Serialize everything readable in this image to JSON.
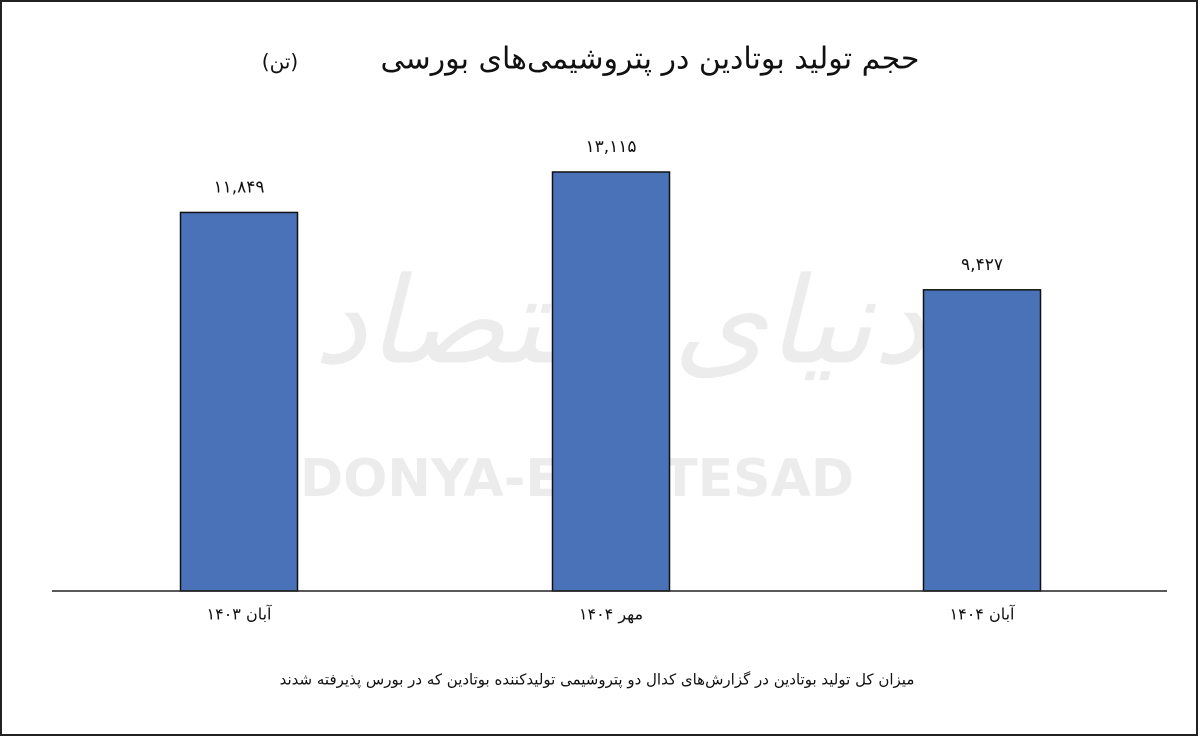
{
  "chart_data": {
    "type": "bar",
    "title": "حجم تولید بوتادین در پتروشیمی‌های بورسی",
    "title_unit": "(تن)",
    "categories": [
      "آبان ۱۴۰۳",
      "مهر ۱۴۰۴",
      "آبان ۱۴۰۴"
    ],
    "values": [
      11849,
      13115,
      9427
    ],
    "value_labels": [
      "۱۱,۸۴۹",
      "۱۳,۱۱۵",
      "۹,۴۲۷"
    ],
    "color": "#4a72b8",
    "footnote": "میزان کل تولید بوتادین در گزارش‌های کدال دو پتروشیمی تولیدکننده بوتادین که در بورس پذیرفته شدند",
    "watermark": [
      "دنیای اقتصاد",
      "DONYA-E-EQTESAD"
    ]
  }
}
